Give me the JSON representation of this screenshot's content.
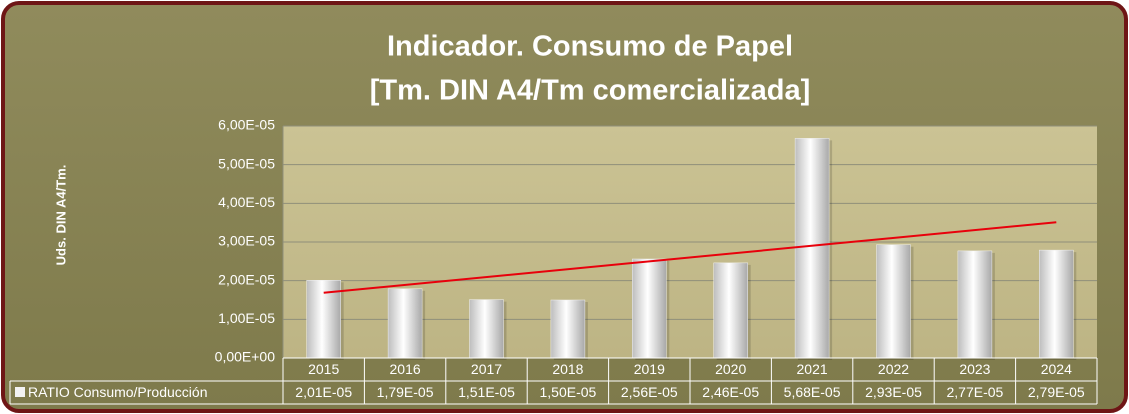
{
  "chart_data": {
    "type": "bar",
    "title": [
      "Indicador. Consumo de Papel",
      "[Tm. DIN A4/Tm comercializada]"
    ],
    "y_label": "Uds. DIN A4/Tm.",
    "categories": [
      "2015",
      "2016",
      "2017",
      "2018",
      "2019",
      "2020",
      "2021",
      "2022",
      "2023",
      "2024"
    ],
    "series": [
      {
        "name": "RATIO Consumo/Producción",
        "color": "#f2f2f2",
        "values": [
          2.01e-05,
          1.79e-05,
          1.51e-05,
          1.5e-05,
          2.56e-05,
          2.46e-05,
          5.68e-05,
          2.93e-05,
          2.77e-05,
          2.79e-05
        ],
        "value_labels": [
          "2,01E-05",
          "1,79E-05",
          "1,51E-05",
          "1,50E-05",
          "2,56E-05",
          "2,46E-05",
          "5,68E-05",
          "2,93E-05",
          "2,77E-05",
          "2,79E-05"
        ]
      }
    ],
    "ylim": [
      0,
      6e-05
    ],
    "yticks": [
      {
        "value": 0,
        "label": "0,00E+00"
      },
      {
        "value": 1e-05,
        "label": "1,00E-05"
      },
      {
        "value": 2e-05,
        "label": "2,00E-05"
      },
      {
        "value": 3e-05,
        "label": "3,00E-05"
      },
      {
        "value": 4e-05,
        "label": "4,00E-05"
      },
      {
        "value": 5e-05,
        "label": "5,00E-05"
      },
      {
        "value": 6e-05,
        "label": "6,00E-05"
      }
    ],
    "grid": true,
    "trendline": {
      "type": "linear",
      "color": "#e8000b"
    }
  }
}
